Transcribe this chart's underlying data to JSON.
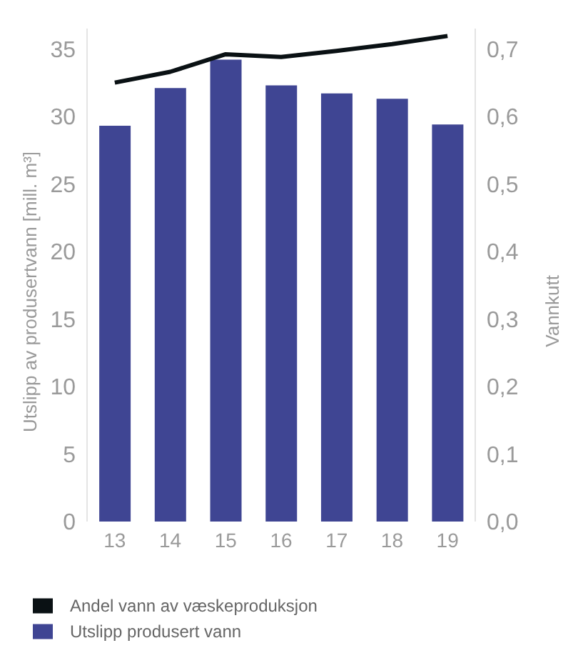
{
  "chart_data": {
    "type": "bar",
    "categories": [
      "13",
      "14",
      "15",
      "16",
      "17",
      "18",
      "19"
    ],
    "ylabel": "Utslipp av produsertvann [mill. m³]",
    "y2label": "Vannkutt",
    "ylim": [
      0,
      36.5
    ],
    "yticks": [
      0,
      5,
      10,
      15,
      20,
      25,
      30,
      35
    ],
    "y2lim": [
      0,
      0.73
    ],
    "y2ticks": [
      {
        "value": 0,
        "label": "0,0"
      },
      {
        "value": 0.1,
        "label": "0,1"
      },
      {
        "value": 0.2,
        "label": "0,2"
      },
      {
        "value": 0.3,
        "label": "0,3"
      },
      {
        "value": 0.4,
        "label": "0,4"
      },
      {
        "value": 0.5,
        "label": "0,5"
      },
      {
        "value": 0.6,
        "label": "0,6"
      },
      {
        "value": 0.7,
        "label": "0,7"
      }
    ],
    "grid": false,
    "legend": "bottom",
    "marker": "none",
    "line_style": "solid",
    "series": [
      {
        "name": "Utslipp produsert vann",
        "color": "#3f4593",
        "values": [
          29.3,
          32.1,
          34.2,
          32.3,
          31.7,
          31.3,
          29.4
        ]
      },
      {
        "name": "Andel vann av væskeproduksjon",
        "type": "line",
        "axis": "y2",
        "color": "#0a1114",
        "values": [
          0.65,
          0.666,
          0.692,
          0.688,
          0.697,
          0.707,
          0.719
        ]
      }
    ]
  }
}
